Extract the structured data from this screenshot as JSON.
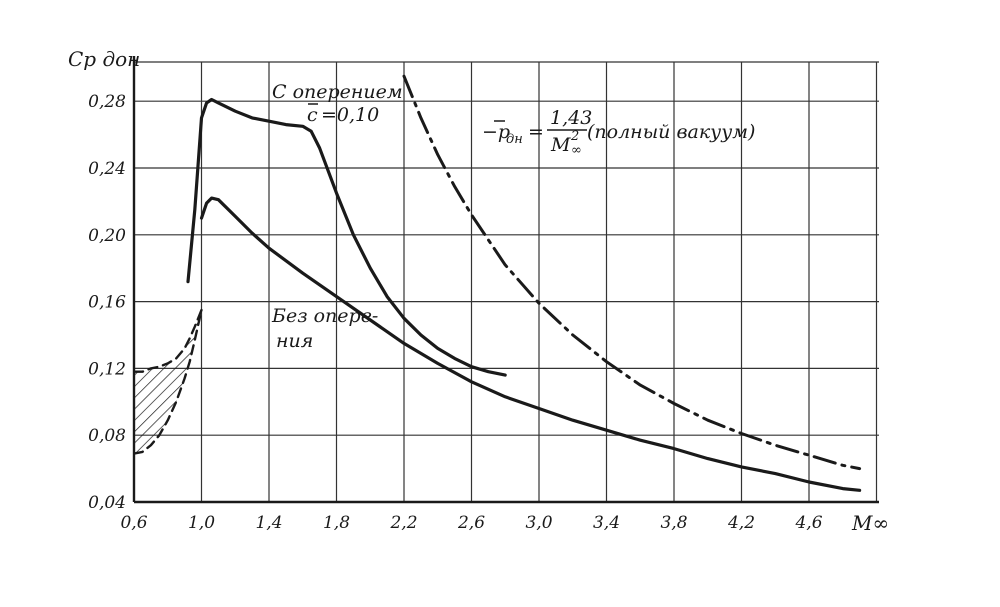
{
  "chart_data": {
    "type": "line",
    "ylabel": "Cp дон",
    "xlabel": "M∞",
    "xlim": [
      0.6,
      4.9
    ],
    "ylim": [
      0.04,
      0.3
    ],
    "x_ticks": [
      0.6,
      1.0,
      1.4,
      1.8,
      2.2,
      2.6,
      3.0,
      3.4,
      3.8,
      4.2,
      4.6
    ],
    "x_tick_labels": [
      "0,6",
      "1,0",
      "1,4",
      "1,8",
      "2,2",
      "2,6",
      "3,0",
      "3,4",
      "3,8",
      "4,2",
      "4,6"
    ],
    "y_ticks": [
      0.04,
      0.08,
      0.12,
      0.16,
      0.2,
      0.24,
      0.28
    ],
    "y_tick_labels": [
      "0,04",
      "0,08",
      "0,12",
      "0,16",
      "0,20",
      "0,24",
      "0,28"
    ],
    "grid": true,
    "series": [
      {
        "name": "С оперением c̄ = 0,10",
        "style": "solid",
        "x": [
          0.92,
          0.96,
          1.0,
          1.03,
          1.06,
          1.1,
          1.2,
          1.3,
          1.4,
          1.5,
          1.6,
          1.65,
          1.7,
          1.8,
          1.9,
          2.0,
          2.1,
          2.2,
          2.3,
          2.4,
          2.5,
          2.6,
          2.7,
          2.8
        ],
        "y": [
          0.172,
          0.215,
          0.27,
          0.279,
          0.281,
          0.279,
          0.274,
          0.27,
          0.268,
          0.266,
          0.265,
          0.262,
          0.252,
          0.225,
          0.2,
          0.18,
          0.163,
          0.15,
          0.14,
          0.132,
          0.126,
          0.121,
          0.118,
          0.116
        ]
      },
      {
        "name": "Без оперения",
        "style": "solid",
        "x": [
          1.0,
          1.03,
          1.06,
          1.1,
          1.2,
          1.3,
          1.4,
          1.6,
          1.8,
          2.0,
          2.2,
          2.4,
          2.6,
          2.8,
          3.0,
          3.2,
          3.4,
          3.6,
          3.8,
          4.0,
          4.2,
          4.4,
          4.6,
          4.8,
          4.9
        ],
        "y": [
          0.21,
          0.219,
          0.222,
          0.221,
          0.211,
          0.201,
          0.192,
          0.177,
          0.163,
          0.149,
          0.135,
          0.123,
          0.112,
          0.103,
          0.096,
          0.089,
          0.083,
          0.077,
          0.072,
          0.066,
          0.061,
          0.057,
          0.052,
          0.048,
          0.047
        ]
      },
      {
        "name": "−p̄дн = 1,43/M∞² (полный вакуум)",
        "style": "dashdot",
        "x": [
          2.2,
          2.3,
          2.4,
          2.5,
          2.6,
          2.8,
          3.0,
          3.2,
          3.4,
          3.6,
          3.8,
          4.0,
          4.2,
          4.4,
          4.6,
          4.8,
          4.9
        ],
        "y": [
          0.295,
          0.27,
          0.248,
          0.229,
          0.212,
          0.182,
          0.159,
          0.14,
          0.124,
          0.11,
          0.099,
          0.089,
          0.081,
          0.074,
          0.068,
          0.062,
          0.06
        ]
      },
      {
        "name": "",
        "style": "dashed",
        "x": [
          0.6,
          0.65,
          0.7,
          0.75,
          0.8,
          0.85,
          0.9,
          0.93,
          0.96,
          1.0
        ],
        "y": [
          0.118,
          0.118,
          0.12,
          0.121,
          0.123,
          0.126,
          0.132,
          0.138,
          0.145,
          0.155
        ]
      },
      {
        "name": "",
        "style": "dashed",
        "x": [
          0.6,
          0.65,
          0.7,
          0.75,
          0.8,
          0.85,
          0.9,
          0.93,
          0.96,
          1.0
        ],
        "y": [
          0.069,
          0.07,
          0.074,
          0.08,
          0.089,
          0.1,
          0.114,
          0.124,
          0.137,
          0.155
        ]
      }
    ],
    "annotations": {
      "with_tail_line1": "С оперением",
      "with_tail_c": "c",
      "with_tail_line2": "=0,10",
      "no_tail_line1": "Без опере-",
      "no_tail_line2": "ния",
      "vacuum_prefix": "−p",
      "vacuum_sub": "дн",
      "vacuum_eq": "=",
      "vacuum_num": "1,43",
      "vacuum_den": "M",
      "vacuum_den_sup": "2",
      "vacuum_den_sub": "∞",
      "vacuum_suffix": "(полный вакуум)"
    },
    "colors": {
      "ink": "#1a1a1a",
      "grid": "#333333",
      "background": "#ffffff"
    }
  }
}
